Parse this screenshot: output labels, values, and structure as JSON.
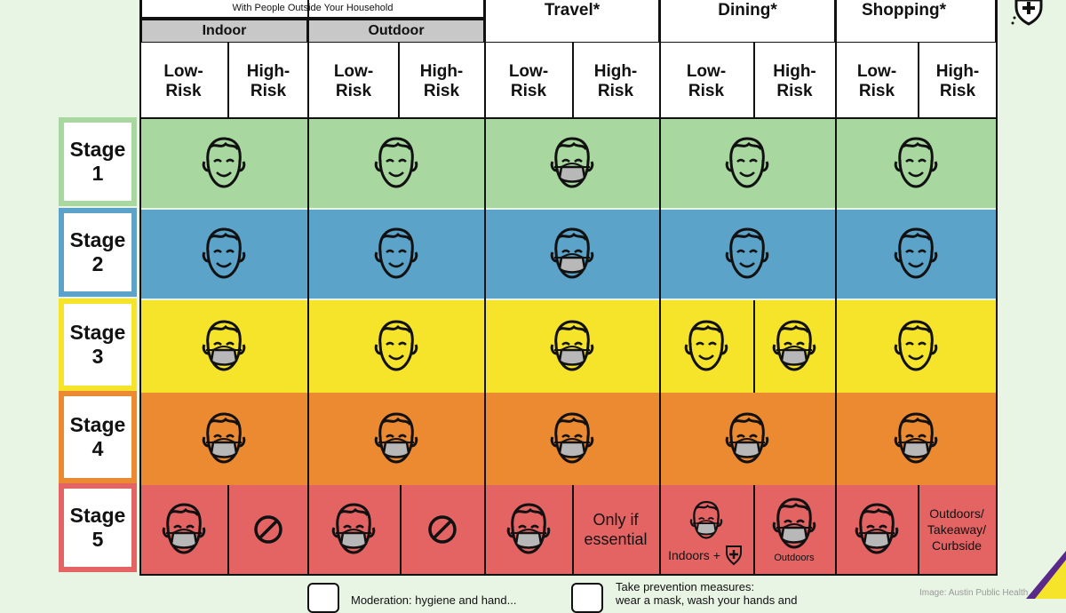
{
  "headers": {
    "gatherings_subtitle": "With People Outside Your Household",
    "indoor": "Indoor",
    "outdoor": "Outdoor",
    "travel": "Travel*",
    "dining": "Dining*",
    "shopping": "Shopping*"
  },
  "risk": {
    "low_1": "Low-",
    "low_2": "Risk",
    "high_1": "High-",
    "high_2": "Risk"
  },
  "stages": [
    {
      "word": "Stage",
      "num": "1",
      "color": "#a8d8a0"
    },
    {
      "word": "Stage",
      "num": "2",
      "color": "#5ba3c8"
    },
    {
      "word": "Stage",
      "num": "3",
      "color": "#f5e42a"
    },
    {
      "word": "Stage",
      "num": "4",
      "color": "#ec8a32"
    },
    {
      "word": "Stage",
      "num": "5",
      "color": "#e46464"
    }
  ],
  "cells": {
    "only_if_1": "Only if",
    "only_if_2": "essential",
    "indoors_plus": "Indoors +",
    "outdoors": "Outdoors",
    "shop_1": "Outdoors/",
    "shop_2": "Takeaway/",
    "shop_3": "Curbside"
  },
  "legend": {
    "left_text": "Moderation: hygiene and hand...",
    "right_1": "Take prevention measures:",
    "right_2": "wear a mask, wash your hands and"
  },
  "credit": "Image: Austin Public Health"
}
